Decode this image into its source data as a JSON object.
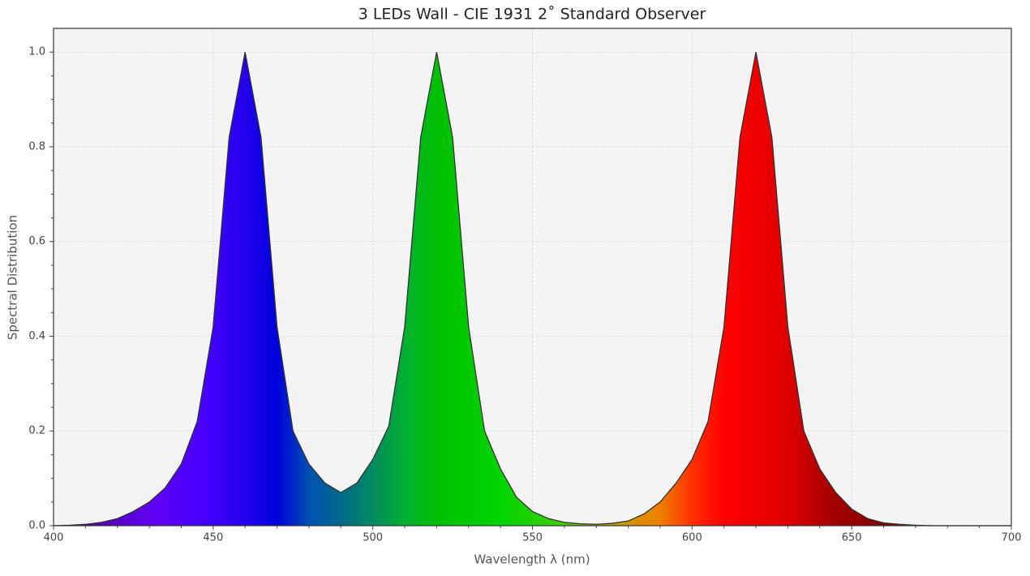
{
  "chart_data": {
    "type": "area",
    "title": "3 LEDs Wall - CIE 1931 2$^\\circ$ Standard Observer",
    "title_display": "3 LEDs Wall - CIE 1931 2˚ Standard Observer",
    "x_label": "Wavelength λ (nm)",
    "y_label": "Spectral Distribution",
    "x": [
      400,
      405,
      410,
      415,
      420,
      425,
      430,
      435,
      440,
      445,
      450,
      455,
      460,
      465,
      470,
      475,
      480,
      485,
      490,
      495,
      500,
      505,
      510,
      515,
      520,
      525,
      530,
      535,
      540,
      545,
      550,
      555,
      560,
      565,
      570,
      575,
      580,
      585,
      590,
      595,
      600,
      605,
      610,
      615,
      620,
      625,
      630,
      635,
      640,
      645,
      650,
      655,
      660,
      665,
      670,
      675,
      680,
      685,
      690,
      695,
      700
    ],
    "series": [
      {
        "name": "3 LEDs Wall",
        "color": "#333333",
        "values": [
          0,
          0.001,
          0.003,
          0.007,
          0.015,
          0.03,
          0.05,
          0.08,
          0.13,
          0.22,
          0.42,
          0.82,
          1.0,
          0.82,
          0.42,
          0.2,
          0.13,
          0.09,
          0.07,
          0.09,
          0.14,
          0.21,
          0.42,
          0.82,
          1.0,
          0.82,
          0.42,
          0.2,
          0.12,
          0.06,
          0.03,
          0.015,
          0.007,
          0.004,
          0.003,
          0.005,
          0.01,
          0.025,
          0.05,
          0.09,
          0.14,
          0.22,
          0.42,
          0.82,
          1.0,
          0.82,
          0.42,
          0.2,
          0.12,
          0.07,
          0.035,
          0.015,
          0.006,
          0.003,
          0.001,
          0,
          0,
          0,
          0,
          0,
          0
        ]
      }
    ],
    "xlim": [
      400,
      700
    ],
    "xticks": [
      400,
      450,
      500,
      550,
      600,
      650,
      700
    ],
    "ylim": [
      0,
      1.05
    ],
    "yticks": [
      {
        "value": 0,
        "label": "0.0"
      },
      0.2,
      0.4,
      0.6,
      0.8,
      {
        "value": 1,
        "label": "1.0"
      }
    ],
    "grid": true
  }
}
